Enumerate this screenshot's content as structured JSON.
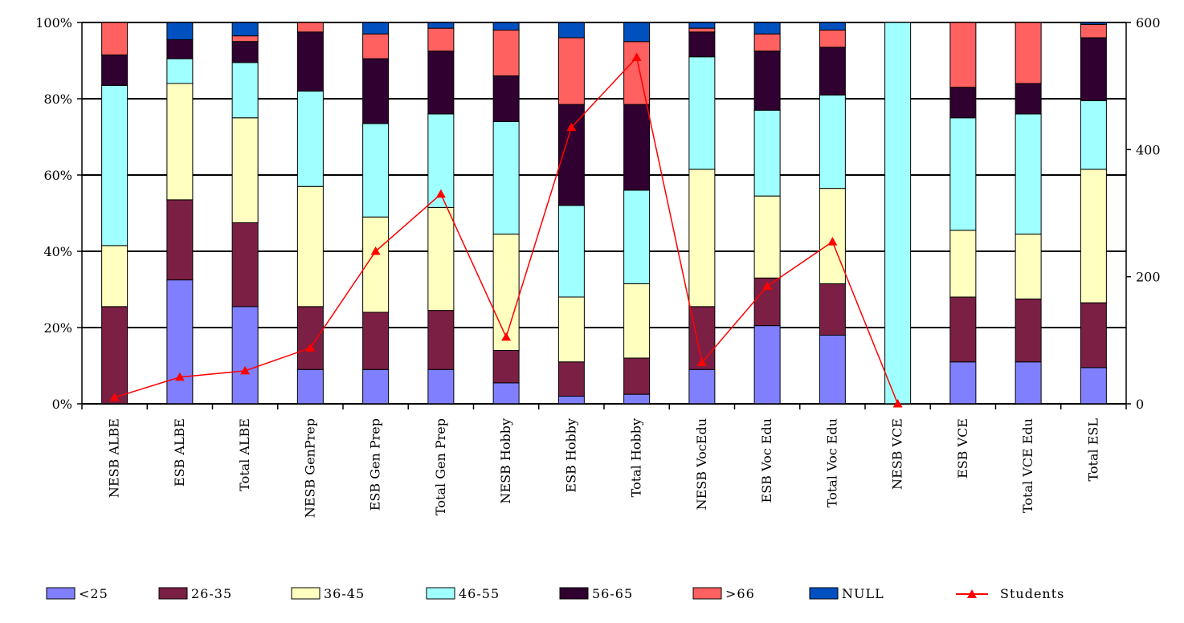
{
  "chart_data": {
    "type": "bar",
    "stacked": "percent",
    "title": "",
    "xlabel": "",
    "ylabel": "",
    "ylim": [
      0,
      100
    ],
    "y2lim": [
      0,
      600
    ],
    "y_ticks": [
      "0%",
      "20%",
      "40%",
      "60%",
      "80%",
      "100%"
    ],
    "y2_ticks": [
      "0",
      "200",
      "400",
      "600"
    ],
    "grid": true,
    "legend_position": "bottom",
    "categories": [
      "NESB ALBE",
      "ESB ALBE",
      "Total ALBE",
      "NESB GenPrep",
      "ESB Gen Prep",
      "Total Gen Prep",
      "NESB Hobby",
      "ESB Hobby",
      "Total Hobby",
      "NESB VocEdu",
      "ESB Voc Edu",
      "Total Voc Edu",
      "NESB VCE",
      "ESB VCE",
      "Total VCE Edu",
      "Total ESL"
    ],
    "series": [
      {
        "name": "<25",
        "color": "#8080ff",
        "values": [
          0,
          32.5,
          25.5,
          9,
          9,
          9,
          5.5,
          2,
          2.5,
          9,
          20.5,
          18,
          0,
          11,
          11,
          9.5
        ]
      },
      {
        "name": "26-35",
        "color": "#7b1f45",
        "values": [
          25.5,
          21,
          22,
          16.5,
          15,
          15.5,
          8.5,
          9,
          9.5,
          16.5,
          12.5,
          13.5,
          0,
          17,
          16.5,
          17
        ]
      },
      {
        "name": "36-45",
        "color": "#ffffc0",
        "values": [
          16,
          30.5,
          27.5,
          31.5,
          25,
          27,
          30.5,
          17,
          19.5,
          36,
          21.5,
          25,
          0,
          17.5,
          17,
          35
        ]
      },
      {
        "name": "46-55",
        "color": "#a0ffff",
        "values": [
          42,
          6.5,
          14.5,
          25,
          24.5,
          24.5,
          29.5,
          24,
          24.5,
          29.5,
          22.5,
          24.5,
          100,
          29.5,
          31.5,
          18
        ]
      },
      {
        "name": "56-65",
        "color": "#300030",
        "values": [
          8,
          5,
          5.5,
          15.5,
          17,
          16.5,
          12,
          26.5,
          22.5,
          6.5,
          15.5,
          12.5,
          0,
          8,
          8,
          16.5
        ]
      },
      {
        "name": ">66",
        "color": "#ff6060",
        "values": [
          8.5,
          0,
          1.5,
          2.5,
          6.5,
          6,
          12,
          17.5,
          16.5,
          1,
          4.5,
          4.5,
          0,
          17,
          16,
          3.5
        ]
      },
      {
        "name": "NULL",
        "color": "#0050c0",
        "values": [
          0,
          4.5,
          3.5,
          0,
          3,
          1.5,
          2,
          4,
          5,
          1.5,
          3,
          2,
          0,
          0,
          0,
          0.5
        ]
      }
    ],
    "line_series": {
      "name": "Students",
      "color": "#ff0000",
      "axis": "secondary",
      "values": [
        10,
        42,
        52,
        88,
        240,
        330,
        105,
        435,
        545,
        65,
        185,
        255,
        0,
        null,
        null,
        null
      ]
    }
  }
}
